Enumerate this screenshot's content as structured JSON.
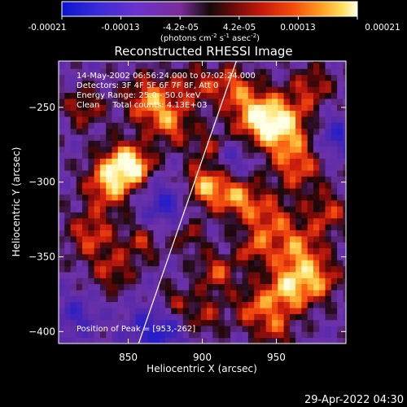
{
  "colorbar": {
    "tick_labels": [
      "-0.00021",
      "-0.00013",
      "-4.2e-05",
      "4.2e-05",
      "0.00013",
      "0.00021"
    ],
    "range": [
      -0.00021,
      0.00021
    ],
    "units_prefix": "(photons cm",
    "units_sup1": "-2",
    "units_mid1": " s",
    "units_sup2": "-1",
    "units_mid2": " asec",
    "units_sup3": "-2",
    "units_suffix": ")"
  },
  "chart_data": {
    "type": "heatmap",
    "title": "Reconstructed RHESSI Image",
    "xlabel": "Heliocentric X (arcsec)",
    "ylabel": "Heliocentric Y (arcsec)",
    "xlim": [
      803,
      997
    ],
    "ylim": [
      -408,
      -219
    ],
    "x_ticks": [
      850,
      900,
      950
    ],
    "x_tick_labels": [
      "850",
      "900",
      "950"
    ],
    "y_ticks": [
      -250,
      -300,
      -350,
      -400
    ],
    "y_tick_labels": [
      "−250",
      "−300",
      "−350",
      "−400"
    ],
    "info_lines": [
      "14-May-2002 06:56:24.000 to 07:02:24.000",
      "Detectors: 3F 4F 5F 6F 7F 8F, Att 0",
      "Energy Range: 25.0 - 50.0 keV",
      "Clean     Total counts: 4.13E+03"
    ],
    "peak_label": "Position of Peak = [953,-262]",
    "peak_position": [
      953,
      -262
    ],
    "limb_line": [
      [
        857,
        -408
      ],
      [
        923,
        -219
      ]
    ],
    "colormap": "rainbow/hot (IDL color table)"
  },
  "footer": {
    "timestamp": "29-Apr-2022 04:30"
  }
}
